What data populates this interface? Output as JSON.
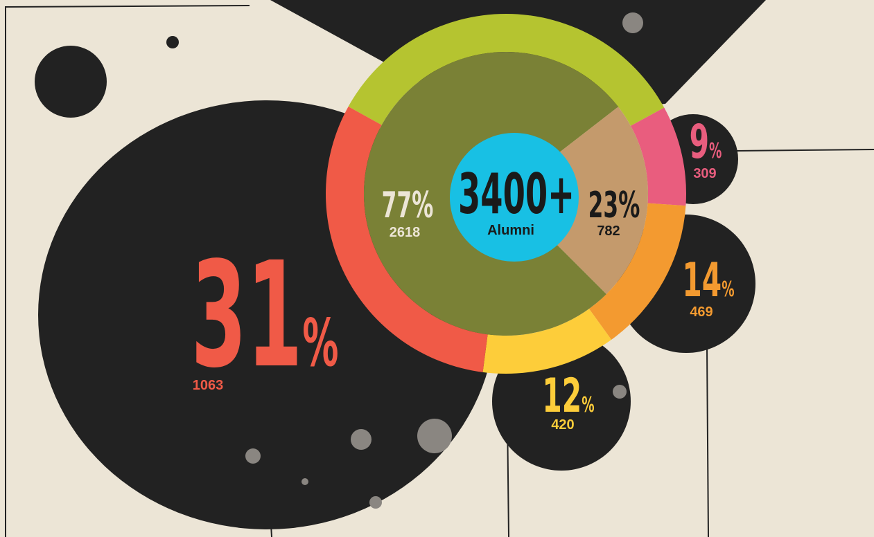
{
  "chart_data": {
    "type": "donut",
    "center_value": "3400+",
    "center_label": "Alumni",
    "outer": {
      "values": [
        34,
        9,
        14,
        12,
        31
      ],
      "value_labels": [
        null,
        "9%",
        "14%",
        "12%",
        "31%"
      ],
      "counts": [
        null,
        309,
        469,
        420,
        1063
      ],
      "colors": [
        "#b5c430",
        "#e95d7e",
        "#f39a30",
        "#fdcd3a",
        "#f05a47"
      ]
    },
    "inner": {
      "values": [
        77,
        23
      ],
      "value_labels": [
        "77%",
        "23%"
      ],
      "counts": [
        2618,
        782
      ],
      "colors": [
        "#7a8136",
        "#c49a6c"
      ]
    },
    "center_color": "#18c0e4"
  }
}
